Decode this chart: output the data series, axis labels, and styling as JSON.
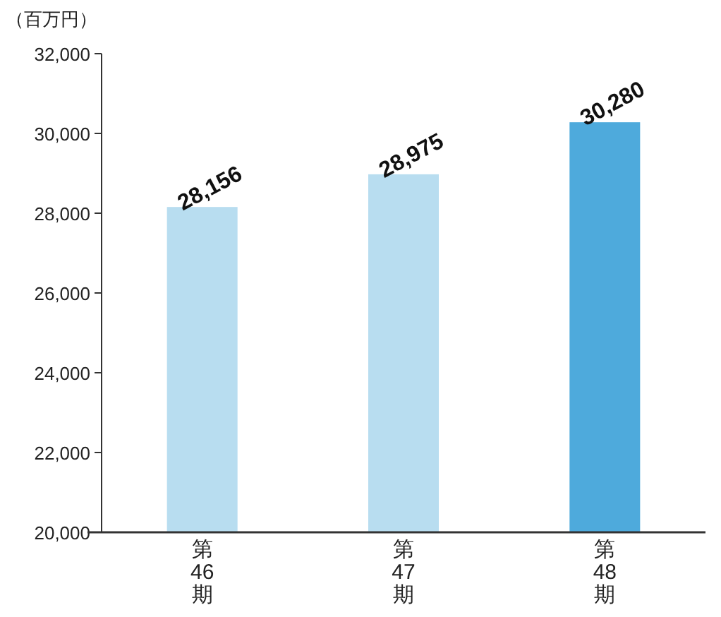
{
  "chart_data": {
    "type": "bar",
    "ylabel": "（百万円）",
    "categories": [
      "第46期",
      "第47期",
      "第48期"
    ],
    "values": [
      28156,
      28975,
      30280
    ],
    "colors": [
      "#b8ddf0",
      "#b8ddf0",
      "#4eaadc"
    ],
    "value_labels": [
      "28,156",
      "28,975",
      "30,280"
    ],
    "ylim": [
      20000,
      32000
    ],
    "yticks": [
      {
        "value": 20000,
        "label": "20,000"
      },
      {
        "value": 22000,
        "label": "22,000"
      },
      {
        "value": 24000,
        "label": "24,000"
      },
      {
        "value": 26000,
        "label": "26,000"
      },
      {
        "value": 28000,
        "label": "28,000"
      },
      {
        "value": 30000,
        "label": "30,000"
      },
      {
        "value": 32000,
        "label": "32,000"
      }
    ],
    "grid": false
  }
}
